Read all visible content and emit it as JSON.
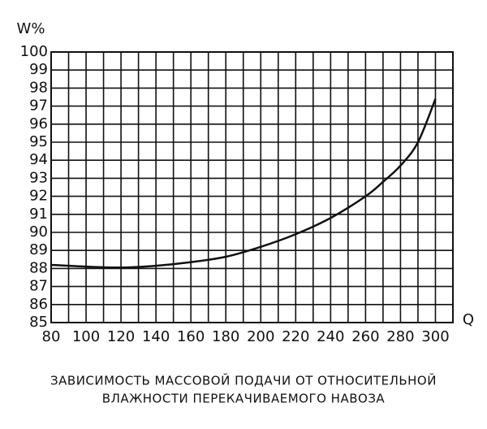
{
  "chart_data": {
    "type": "line",
    "title": [
      "ЗАВИСИМОСТЬ МАССОВОЙ ПОДАЧИ ОТ ОТНОСИТЕЛЬНОЙ",
      "ВЛАЖНОСТИ ПЕРЕКАЧИВАЕМОГО НАВОЗА"
    ],
    "y_label": "W%",
    "x_label": "Q",
    "x": [
      80,
      100,
      120,
      140,
      160,
      180,
      200,
      220,
      240,
      260,
      270,
      280,
      290,
      300
    ],
    "series": [
      {
        "color": "#111111",
        "values": [
          88.2,
          88.1,
          88.05,
          88.15,
          88.35,
          88.65,
          89.2,
          89.9,
          90.8,
          92.0,
          92.8,
          93.7,
          95.0,
          97.4
        ]
      }
    ],
    "xlim": [
      80,
      310
    ],
    "ylim": [
      85,
      100
    ],
    "xticks": [
      80,
      100,
      120,
      140,
      160,
      180,
      200,
      220,
      240,
      260,
      280,
      300
    ],
    "xminor": [
      90,
      110,
      130,
      150,
      170,
      190,
      210,
      230,
      250,
      270,
      290
    ],
    "yticks": [
      85,
      86,
      87,
      88,
      89,
      90,
      91,
      92,
      93,
      94,
      95,
      96,
      97,
      98,
      99,
      100
    ],
    "grid": true
  }
}
